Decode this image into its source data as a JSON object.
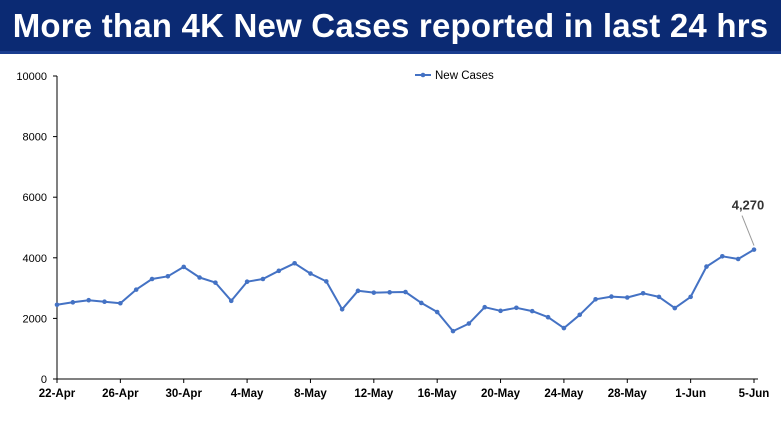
{
  "header": {
    "title": "More than 4K New Cases reported in last 24 hrs"
  },
  "colors": {
    "banner_bg": "#0b2a73",
    "series": "#4472c4"
  },
  "chart_data": {
    "type": "line",
    "title": "",
    "xlabel": "",
    "ylabel": "",
    "ylim": [
      0,
      10000
    ],
    "yticks": [
      0,
      2000,
      4000,
      6000,
      8000,
      10000
    ],
    "xtick_labels": [
      "22-Apr",
      "26-Apr",
      "30-Apr",
      "4-May",
      "8-May",
      "12-May",
      "16-May",
      "20-May",
      "24-May",
      "28-May",
      "1-Jun",
      "5-Jun"
    ],
    "grid": false,
    "legend": "top-center",
    "series": [
      {
        "name": "New Cases",
        "color": "#4472c4",
        "x": [
          "22-Apr",
          "23-Apr",
          "24-Apr",
          "25-Apr",
          "26-Apr",
          "27-Apr",
          "28-Apr",
          "29-Apr",
          "30-Apr",
          "1-May",
          "2-May",
          "3-May",
          "4-May",
          "5-May",
          "6-May",
          "7-May",
          "8-May",
          "9-May",
          "10-May",
          "11-May",
          "12-May",
          "13-May",
          "14-May",
          "15-May",
          "16-May",
          "17-May",
          "18-May",
          "19-May",
          "20-May",
          "21-May",
          "22-May",
          "23-May",
          "24-May",
          "25-May",
          "26-May",
          "27-May",
          "28-May",
          "29-May",
          "30-May",
          "31-May",
          "1-Jun",
          "2-Jun",
          "3-Jun",
          "4-Jun",
          "5-Jun"
        ],
        "values": [
          2450,
          2530,
          2600,
          2550,
          2500,
          2950,
          3300,
          3390,
          3700,
          3350,
          3180,
          2580,
          3210,
          3300,
          3570,
          3820,
          3480,
          3220,
          2300,
          2910,
          2850,
          2860,
          2870,
          2510,
          2210,
          1580,
          1830,
          2370,
          2250,
          2350,
          2240,
          2040,
          1680,
          2120,
          2630,
          2720,
          2690,
          2830,
          2710,
          2340,
          2710,
          3710,
          4050,
          3960,
          4270
        ]
      }
    ],
    "annotations": [
      {
        "x": "5-Jun",
        "value": 4270,
        "text": "4,270"
      }
    ]
  }
}
